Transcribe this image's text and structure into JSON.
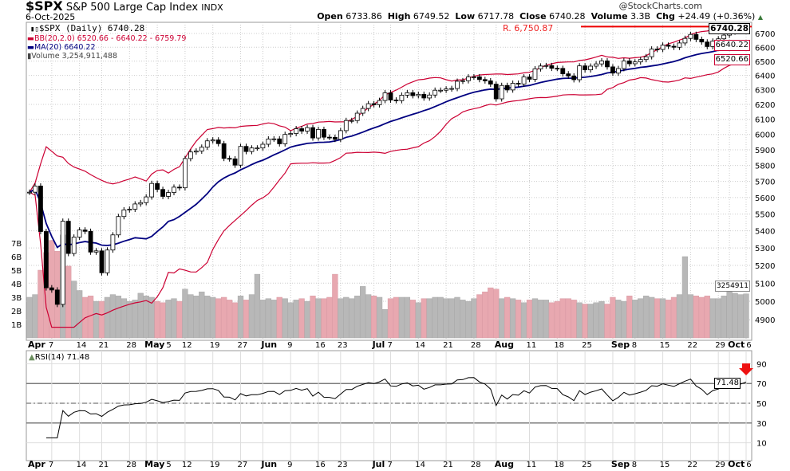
{
  "header": {
    "symbol": "$SPX",
    "name": "S&P 500 Large Cap Index",
    "exchange": "INDX",
    "date": "6-Oct-2025",
    "watermark": "@StockCharts.com",
    "open_label": "Open",
    "open": "6733.86",
    "high_label": "High",
    "high": "6749.52",
    "low_label": "Low",
    "low": "6717.78",
    "close_label": "Close",
    "close": "6740.28",
    "volume_label": "Volume",
    "volume": "3.3B",
    "chg_label": "Chg",
    "chg": "+24.49 (+0.36%)"
  },
  "legend": {
    "price": "$SPX (Daily) 6740.28",
    "bb": "BB(20,2.0) 6520.66 - 6640.22 - 6759.79",
    "ma": "MA(20) 6640.22",
    "volume": "Volume 3,254,911,488",
    "rsi": "RSI(14) 71.48"
  },
  "annotations": {
    "resistance_label": "R. 6,750.87",
    "resistance": 6750.87
  },
  "right_labels": {
    "close": "6740.28",
    "bb_mid": "6640.22",
    "bb_low": "6520.66",
    "volume": "3254911",
    "rsi": "71.48"
  },
  "colors": {
    "bb": "#cc0033",
    "ma": "#000080",
    "vol_up": "#b8b8b8",
    "vol_down": "#e8a8b0",
    "resistance": "#ee0000",
    "rsi_over": "#6b8f5e",
    "rsi_under": "#a05a5a"
  },
  "chart_data": {
    "type": "candlestick",
    "scale": "log",
    "ylim": [
      4850,
      6780
    ],
    "price_ticks": [
      4900,
      5000,
      5100,
      5200,
      5300,
      5400,
      5500,
      5600,
      5700,
      5800,
      5900,
      6000,
      6100,
      6200,
      6300,
      6400,
      6500,
      6600,
      6700
    ],
    "volume_ticks": [
      "1B",
      "2B",
      "3B",
      "4B",
      "5B",
      "6B",
      "7B"
    ],
    "rsi_ticks": [
      10,
      30,
      50,
      70,
      90
    ],
    "x_ticks": [
      {
        "date": "04-01",
        "label": "Apr",
        "bold": true
      },
      {
        "date": "04-07",
        "label": "7"
      },
      {
        "date": "04-14",
        "label": "14"
      },
      {
        "date": "04-21",
        "label": "21"
      },
      {
        "date": "04-28",
        "label": "28"
      },
      {
        "date": "05-01",
        "label": "May",
        "bold": true
      },
      {
        "date": "05-05",
        "label": "5"
      },
      {
        "date": "05-12",
        "label": "12"
      },
      {
        "date": "05-19",
        "label": "19"
      },
      {
        "date": "05-27",
        "label": "27"
      },
      {
        "date": "06-02",
        "label": "Jun",
        "bold": true
      },
      {
        "date": "06-09",
        "label": "9"
      },
      {
        "date": "06-16",
        "label": "16"
      },
      {
        "date": "06-23",
        "label": "23"
      },
      {
        "date": "07-01",
        "label": "Jul",
        "bold": true
      },
      {
        "date": "07-07",
        "label": "7"
      },
      {
        "date": "07-14",
        "label": "14"
      },
      {
        "date": "07-21",
        "label": "21"
      },
      {
        "date": "07-28",
        "label": "28"
      },
      {
        "date": "08-01",
        "label": "Aug",
        "bold": true
      },
      {
        "date": "08-11",
        "label": "11"
      },
      {
        "date": "08-18",
        "label": "18"
      },
      {
        "date": "08-25",
        "label": "25"
      },
      {
        "date": "09-02",
        "label": "Sep",
        "bold": true
      },
      {
        "date": "09-08",
        "label": "8"
      },
      {
        "date": "09-15",
        "label": "15"
      },
      {
        "date": "09-22",
        "label": "22"
      },
      {
        "date": "09-29",
        "label": "29"
      },
      {
        "date": "10-01",
        "label": "Oct",
        "bold": true
      },
      {
        "date": "10-06",
        "label": "6"
      }
    ],
    "dates": [
      "04-01",
      "04-02",
      "04-03",
      "04-04",
      "04-07",
      "04-08",
      "04-09",
      "04-10",
      "04-11",
      "04-14",
      "04-15",
      "04-16",
      "04-17",
      "04-21",
      "04-22",
      "04-23",
      "04-24",
      "04-25",
      "04-28",
      "04-29",
      "04-30",
      "05-01",
      "05-02",
      "05-05",
      "05-06",
      "05-07",
      "05-08",
      "05-09",
      "05-12",
      "05-13",
      "05-14",
      "05-15",
      "05-16",
      "05-19",
      "05-20",
      "05-21",
      "05-22",
      "05-23",
      "05-27",
      "05-28",
      "05-29",
      "05-30",
      "06-02",
      "06-03",
      "06-04",
      "06-05",
      "06-06",
      "06-09",
      "06-10",
      "06-11",
      "06-12",
      "06-13",
      "06-16",
      "06-17",
      "06-18",
      "06-20",
      "06-23",
      "06-24",
      "06-25",
      "06-26",
      "06-27",
      "06-30",
      "07-01",
      "07-02",
      "07-03",
      "07-07",
      "07-08",
      "07-09",
      "07-10",
      "07-11",
      "07-14",
      "07-15",
      "07-16",
      "07-17",
      "07-18",
      "07-21",
      "07-22",
      "07-23",
      "07-24",
      "07-25",
      "07-28",
      "07-29",
      "07-30",
      "07-31",
      "08-01",
      "08-04",
      "08-05",
      "08-06",
      "08-07",
      "08-08",
      "08-11",
      "08-12",
      "08-13",
      "08-14",
      "08-15",
      "08-18",
      "08-19",
      "08-20",
      "08-21",
      "08-22",
      "08-25",
      "08-26",
      "08-27",
      "08-28",
      "08-29",
      "09-02",
      "09-03",
      "09-04",
      "09-05",
      "09-08",
      "09-09",
      "09-10",
      "09-11",
      "09-12",
      "09-15",
      "09-16",
      "09-17",
      "09-18",
      "09-19",
      "09-22",
      "09-23",
      "09-24",
      "09-25",
      "09-26",
      "09-29",
      "09-30",
      "10-01",
      "10-02",
      "10-03",
      "10-06"
    ],
    "close": [
      5633,
      5671,
      5396,
      5074,
      5062,
      4983,
      5457,
      5268,
      5363,
      5405,
      5397,
      5276,
      5283,
      5158,
      5288,
      5376,
      5485,
      5525,
      5529,
      5561,
      5569,
      5604,
      5687,
      5650,
      5607,
      5631,
      5664,
      5660,
      5844,
      5886,
      5892,
      5917,
      5958,
      5964,
      5940,
      5845,
      5842,
      5802,
      5922,
      5889,
      5912,
      5912,
      5936,
      5970,
      5971,
      5939,
      6000,
      6006,
      6038,
      6022,
      6045,
      5977,
      6033,
      5982,
      5981,
      5968,
      6025,
      6092,
      6092,
      6141,
      6173,
      6205,
      6198,
      6227,
      6279,
      6230,
      6226,
      6263,
      6280,
      6260,
      6269,
      6244,
      6264,
      6297,
      6297,
      6306,
      6309,
      6359,
      6363,
      6389,
      6390,
      6371,
      6362,
      6339,
      6238,
      6330,
      6299,
      6345,
      6340,
      6389,
      6373,
      6446,
      6466,
      6469,
      6450,
      6449,
      6411,
      6396,
      6370,
      6467,
      6439,
      6465,
      6481,
      6502,
      6460,
      6416,
      6448,
      6502,
      6482,
      6495,
      6512,
      6532,
      6587,
      6584,
      6615,
      6607,
      6600,
      6631,
      6664,
      6693,
      6657,
      6638,
      6605,
      6644,
      6661,
      6688,
      6711,
      6715,
      6716,
      6740.28
    ],
    "volume_billions": [
      3.0,
      3.2,
      5.0,
      6.3,
      7.2,
      6.4,
      7.6,
      5.3,
      4.2,
      3.5,
      3.0,
      3.1,
      2.7,
      2.7,
      3.0,
      3.2,
      3.1,
      2.9,
      2.7,
      2.8,
      3.3,
      3.1,
      3.0,
      2.7,
      2.6,
      2.8,
      2.9,
      2.7,
      3.6,
      3.2,
      3.1,
      3.4,
      3.1,
      3.0,
      2.9,
      3.0,
      2.8,
      2.6,
      3.1,
      2.8,
      3.2,
      4.7,
      2.8,
      2.9,
      2.8,
      3.0,
      2.9,
      2.6,
      2.8,
      2.9,
      2.7,
      3.1,
      2.9,
      2.9,
      3.0,
      4.7,
      2.9,
      3.0,
      2.9,
      3.1,
      3.8,
      3.2,
      3.1,
      3.0,
      2.1,
      2.9,
      3.0,
      3.0,
      3.0,
      2.8,
      2.6,
      2.9,
      2.9,
      3.0,
      3.0,
      2.9,
      2.9,
      3.0,
      2.8,
      2.7,
      2.9,
      3.2,
      3.4,
      3.7,
      3.6,
      2.9,
      3.0,
      2.9,
      2.8,
      2.6,
      2.8,
      2.9,
      2.8,
      2.8,
      2.6,
      2.7,
      2.9,
      2.9,
      2.8,
      2.6,
      2.5,
      2.5,
      2.6,
      2.7,
      2.5,
      3.0,
      2.8,
      2.7,
      3.1,
      2.8,
      2.9,
      3.1,
      3.0,
      2.9,
      2.9,
      2.8,
      3.0,
      3.2,
      6.0,
      3.2,
      3.1,
      3.0,
      3.1,
      2.9,
      2.9,
      3.1,
      3.4,
      3.3,
      3.2,
      3.25
    ]
  }
}
